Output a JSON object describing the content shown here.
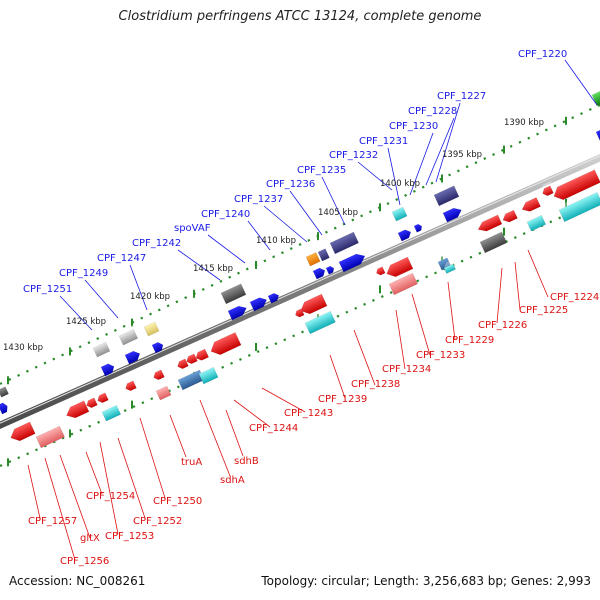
{
  "title": "Clostridium perfringens ATCC 13124, complete genome",
  "footer": {
    "accession": "Accession: NC_008261",
    "summary": "Topology: circular; Length: 3,256,683 bp; Genes: 2,993"
  },
  "colors": {
    "upper_labels": "#1a1ae6",
    "lower_labels": "#dd1111",
    "backbone": "#8f8f8f",
    "tick": "#2a8a2a"
  },
  "kbp_labels": [
    "1390 kbp",
    "1395 kbp",
    "1400 kbp",
    "1405 kbp",
    "1410 kbp",
    "1415 kbp",
    "1420 kbp",
    "1425 kbp",
    "1430 kbp"
  ],
  "upper_genes": [
    "CPF_1220",
    "CPF_1227",
    "CPF_1228",
    "CPF_1230",
    "CPF_1231",
    "CPF_1232",
    "CPF_1235",
    "CPF_1236",
    "CPF_1237",
    "CPF_1240",
    "spoVAF",
    "CPF_1242",
    "CPF_1247",
    "CPF_1249",
    "CPF_1251"
  ],
  "lower_genes": [
    "CPF_1224",
    "CPF_1225",
    "CPF_1226",
    "CPF_1229",
    "CPF_1233",
    "CPF_1234",
    "CPF_1238",
    "CPF_1239",
    "CPF_1243",
    "CPF_1244",
    "sdhB",
    "sdhA",
    "truA",
    "CPF_1250",
    "CPF_1252",
    "CPF_1253",
    "CPF_1254",
    "gltX",
    "CPF_1256",
    "CPF_1257"
  ]
}
